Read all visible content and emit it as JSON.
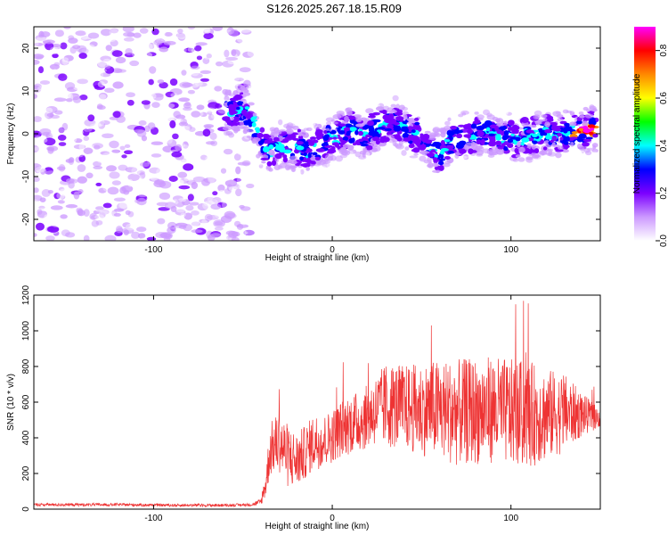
{
  "title": "S126.2025.267.18.15.R09",
  "chart_data": [
    {
      "type": "heatmap",
      "description": "Spectrogram: normalized spectral amplitude vs height of straight line and frequency",
      "xlabel": "Height of straight line (km)",
      "ylabel": "Frequency (Hz)",
      "xlim": [
        -167,
        150
      ],
      "ylim": [
        -25,
        25
      ],
      "xticks": [
        -100,
        0,
        100
      ],
      "xtick_labels": [
        "-100",
        "0",
        "100"
      ],
      "yticks": [
        -20,
        -10,
        0,
        10,
        20
      ],
      "ytick_labels": [
        "-20",
        "-10",
        "0",
        "10",
        "20"
      ],
      "noise_region_end_x": -50,
      "signal_ridge": {
        "x": [
          -60,
          -55,
          -50,
          -45,
          -40,
          -35,
          -30,
          -25,
          -20,
          -15,
          -10,
          -5,
          0,
          5,
          10,
          15,
          20,
          25,
          30,
          35,
          40,
          45,
          50,
          55,
          60,
          65,
          70,
          80,
          90,
          100,
          110,
          120,
          130,
          140,
          148
        ],
        "y": [
          5,
          5,
          6,
          3,
          -2,
          -4,
          -3,
          -3,
          -3,
          -4,
          -3,
          -2,
          -1,
          0,
          1,
          0,
          0,
          1,
          2,
          3,
          1,
          0,
          -1,
          -3,
          -5,
          -2,
          -1,
          0,
          0,
          -1,
          -1,
          0,
          0,
          1,
          1
        ]
      },
      "colorbar": {
        "label": "Normalized spectral amplitude",
        "range": [
          0,
          0.9
        ],
        "ticks": [
          0.0,
          0.2,
          0.4,
          0.6,
          0.8
        ],
        "tick_labels": [
          "0.0",
          "0.2",
          "0.4",
          "0.6",
          "0.8"
        ],
        "colors": [
          "#ffffff",
          "#cc99ff",
          "#7b00ff",
          "#0000ff",
          "#00ffff",
          "#00ff00",
          "#ffff00",
          "#ff8800",
          "#ff0000",
          "#ff00ff"
        ]
      }
    },
    {
      "type": "line",
      "description": "Signal-to-noise ratio vs height of straight line",
      "xlabel": "Height of straight line (km)",
      "ylabel": "SNR (10 * v/v)",
      "xlim": [
        -167,
        150
      ],
      "ylim": [
        0,
        1200
      ],
      "xticks": [
        -100,
        0,
        100
      ],
      "xtick_labels": [
        "-100",
        "0",
        "100"
      ],
      "yticks": [
        0,
        200,
        400,
        600,
        800,
        1000,
        1200
      ],
      "ytick_labels": [
        "0",
        "200",
        "400",
        "600",
        "800",
        "1000",
        "1200"
      ],
      "color": "#ee3333",
      "series": [
        {
          "name": "SNR",
          "x": [
            -167,
            -150,
            -120,
            -90,
            -60,
            -45,
            -40,
            -37,
            -35,
            -30,
            -25,
            -20,
            -15,
            -10,
            -5,
            0,
            5,
            10,
            15,
            20,
            25,
            30,
            35,
            40,
            50,
            60,
            70,
            80,
            90,
            100,
            110,
            120,
            130,
            140,
            150
          ],
          "y": [
            25,
            25,
            25,
            22,
            22,
            25,
            40,
            150,
            330,
            380,
            300,
            270,
            320,
            380,
            380,
            410,
            450,
            480,
            490,
            520,
            560,
            580,
            580,
            570,
            560,
            560,
            540,
            550,
            560,
            540,
            530,
            530,
            540,
            530,
            510
          ],
          "spread": [
            8,
            8,
            8,
            8,
            8,
            8,
            20,
            80,
            150,
            170,
            180,
            160,
            150,
            160,
            150,
            150,
            160,
            170,
            170,
            180,
            200,
            240,
            240,
            240,
            260,
            280,
            300,
            300,
            300,
            300,
            300,
            260,
            220,
            120,
            50
          ]
        }
      ]
    }
  ]
}
